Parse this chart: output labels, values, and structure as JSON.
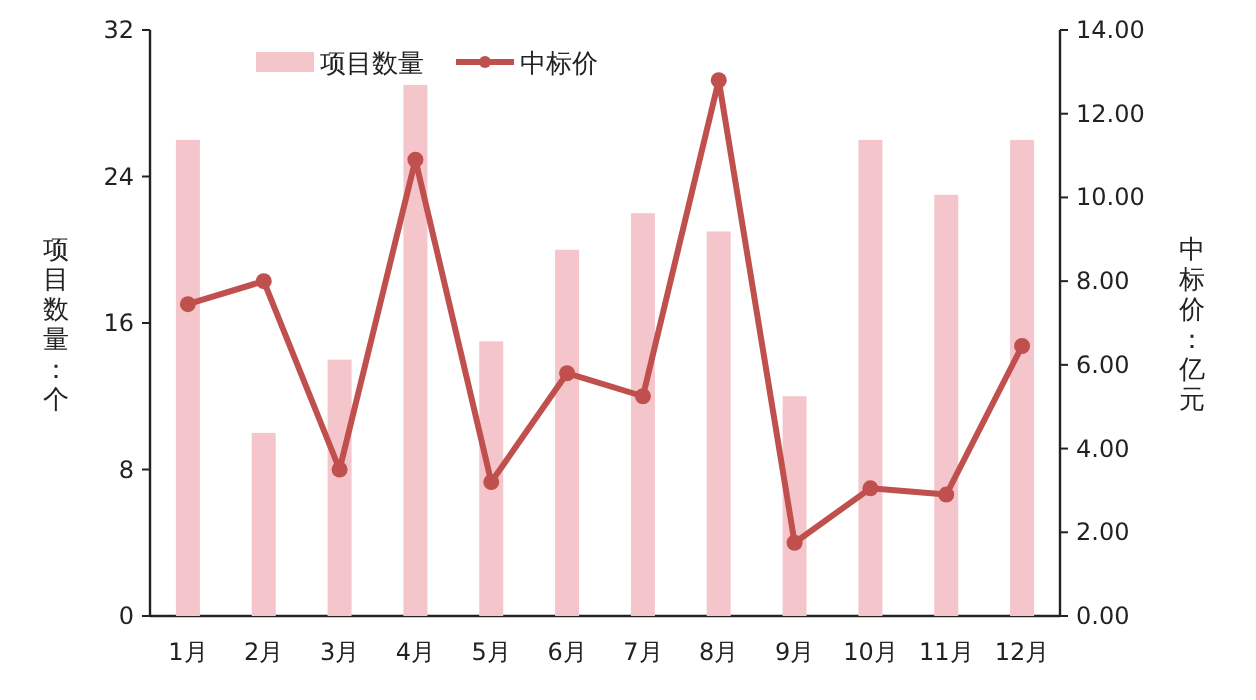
{
  "chart_data": {
    "type": "bar",
    "ylabel": "项目数量：个",
    "y2label": "中标价：亿元",
    "categories": [
      "1月",
      "2月",
      "3月",
      "4月",
      "5月",
      "6月",
      "7月",
      "8月",
      "9月",
      "10月",
      "11月",
      "12月"
    ],
    "series": [
      {
        "name": "项目数量",
        "color": "#f4c6cc",
        "values": [
          26,
          10,
          14,
          29,
          15,
          20,
          22,
          21,
          12,
          26,
          23,
          26
        ]
      },
      {
        "name": "中标价",
        "type": "line",
        "axis": "y2",
        "color": "#c0504d",
        "marker": "circle",
        "values": [
          7.45,
          8.0,
          3.5,
          10.9,
          3.2,
          5.8,
          5.25,
          12.8,
          1.75,
          3.05,
          2.9,
          6.45
        ]
      }
    ],
    "ylim": [
      0,
      32
    ],
    "yticks": [
      0,
      8,
      16,
      24,
      32
    ],
    "y2lim": [
      0,
      14
    ],
    "y2ticks": [
      {
        "value": 0,
        "label": "0.00"
      },
      {
        "value": 2,
        "label": "2.00"
      },
      {
        "value": 4,
        "label": "4.00"
      },
      {
        "value": 6,
        "label": "6.00"
      },
      {
        "value": 8,
        "label": "8.00"
      },
      {
        "value": 10,
        "label": "10.00"
      },
      {
        "value": 12,
        "label": "12.00"
      },
      {
        "value": 14,
        "label": "14.00"
      }
    ],
    "legend": "top"
  }
}
